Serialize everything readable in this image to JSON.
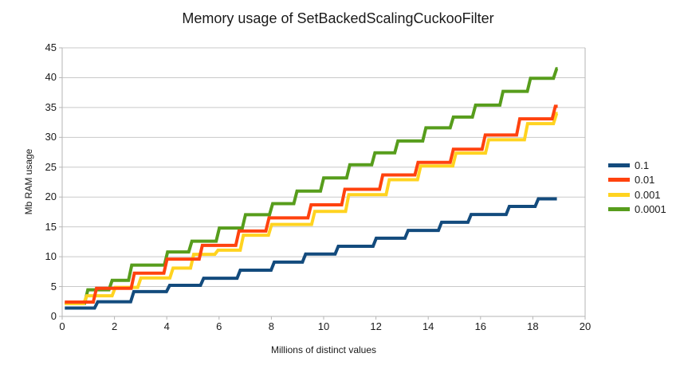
{
  "chart_data": {
    "type": "line",
    "subtype": "step-post",
    "title": "Memory usage of SetBackedScalingCuckooFilter",
    "xlabel": "Millions of distinct values",
    "ylabel": "Mb RAM usage",
    "xlim": [
      0,
      20
    ],
    "ylim": [
      0,
      45
    ],
    "x_ticks": [
      0,
      2,
      4,
      6,
      8,
      10,
      12,
      14,
      16,
      18,
      20
    ],
    "y_ticks": [
      0,
      5,
      10,
      15,
      20,
      25,
      30,
      35,
      40,
      45
    ],
    "grid": "horizontal",
    "legend_position": "right",
    "axis_color": "#b5b5b5",
    "grid_color": "#c9c9c9",
    "series": [
      {
        "name": "0.1",
        "color": "#134B7D",
        "points": [
          [
            0.1,
            1.4
          ],
          [
            1.3,
            2.45
          ],
          [
            2.68,
            4.15
          ],
          [
            4.05,
            5.2
          ],
          [
            5.35,
            6.4
          ],
          [
            6.75,
            7.75
          ],
          [
            8.05,
            9.1
          ],
          [
            9.25,
            10.45
          ],
          [
            10.5,
            11.75
          ],
          [
            11.95,
            13.1
          ],
          [
            13.17,
            14.4
          ],
          [
            14.45,
            15.78
          ],
          [
            15.58,
            17.08
          ],
          [
            17.04,
            18.42
          ],
          [
            18.15,
            19.7
          ]
        ],
        "end": 18.92
      },
      {
        "name": "0.01",
        "color": "#FF420E",
        "points": [
          [
            0.1,
            2.4
          ],
          [
            1.25,
            4.7
          ],
          [
            2.7,
            7.25
          ],
          [
            3.95,
            9.6
          ],
          [
            5.3,
            11.9
          ],
          [
            6.7,
            14.3
          ],
          [
            7.85,
            16.5
          ],
          [
            9.46,
            18.7
          ],
          [
            10.75,
            21.3
          ],
          [
            12.2,
            23.7
          ],
          [
            13.55,
            25.8
          ],
          [
            14.9,
            28.0
          ],
          [
            16.12,
            30.4
          ],
          [
            17.44,
            33.1
          ],
          [
            18.8,
            35.2
          ]
        ],
        "end": 18.95
      },
      {
        "name": "0.001",
        "color": "#FFD320",
        "points": [
          [
            0.1,
            2.15
          ],
          [
            0.88,
            3.45
          ],
          [
            1.97,
            4.85
          ],
          [
            2.95,
            6.45
          ],
          [
            4.18,
            8.1
          ],
          [
            4.97,
            10.4
          ],
          [
            5.9,
            11.1
          ],
          [
            6.87,
            13.6
          ],
          [
            7.95,
            15.4
          ],
          [
            9.6,
            17.6
          ],
          [
            10.9,
            20.4
          ],
          [
            12.45,
            22.9
          ],
          [
            13.65,
            25.2
          ],
          [
            15.0,
            27.35
          ],
          [
            16.25,
            29.6
          ],
          [
            17.74,
            32.3
          ],
          [
            18.85,
            34.0
          ]
        ],
        "end": 18.95
      },
      {
        "name": "0.0001",
        "color": "#579D1C",
        "points": [
          [
            0.1,
            2.2
          ],
          [
            0.92,
            4.45
          ],
          [
            1.85,
            6.05
          ],
          [
            2.6,
            8.6
          ],
          [
            3.97,
            10.8
          ],
          [
            4.9,
            12.6
          ],
          [
            5.95,
            14.8
          ],
          [
            6.95,
            17.05
          ],
          [
            7.99,
            18.9
          ],
          [
            8.92,
            21.0
          ],
          [
            9.94,
            23.2
          ],
          [
            10.94,
            25.4
          ],
          [
            11.9,
            27.4
          ],
          [
            12.78,
            29.4
          ],
          [
            13.85,
            31.6
          ],
          [
            14.9,
            33.4
          ],
          [
            15.75,
            35.4
          ],
          [
            16.8,
            37.7
          ],
          [
            17.85,
            39.9
          ],
          [
            18.85,
            41.5
          ]
        ],
        "end": 18.95
      }
    ]
  }
}
